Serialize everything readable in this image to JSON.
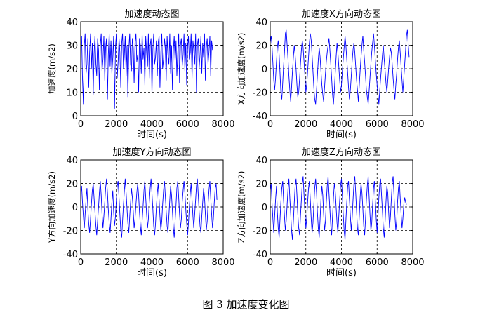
{
  "figure_caption": "图 3  加速度变化图",
  "chart_data": [
    {
      "type": "line",
      "title": "加速度动态图",
      "xlabel": "时间(s)",
      "ylabel": "加速度(m/s2)",
      "xlim": [
        0,
        8000
      ],
      "ylim": [
        0,
        40
      ],
      "xticks": [
        0,
        2000,
        4000,
        6000,
        8000
      ],
      "yticks": [
        0,
        10,
        20,
        30,
        40
      ],
      "grid": true,
      "series": [
        {
          "name": "加速度",
          "color": "#0000ff",
          "x_start": 0,
          "x_step": 50,
          "y": [
            28,
            34,
            16,
            5,
            30,
            35,
            18,
            22,
            33,
            12,
            27,
            35,
            20,
            31,
            9,
            26,
            34,
            22,
            17,
            33,
            28,
            11,
            30,
            35,
            19,
            24,
            34,
            15,
            29,
            33,
            7,
            26,
            35,
            21,
            32,
            18,
            25,
            34,
            3,
            29,
            35,
            16,
            23,
            33,
            27,
            12,
            31,
            35,
            20,
            26,
            34,
            17,
            30,
            8,
            28,
            35,
            22,
            19,
            33,
            29,
            14,
            31,
            35,
            23,
            26,
            10,
            33,
            30,
            18,
            35,
            24,
            29,
            13,
            34,
            27,
            21,
            35,
            16,
            30,
            33,
            9,
            28,
            35,
            22,
            25,
            32,
            17,
            31,
            34,
            12,
            27,
            35,
            20,
            24,
            33,
            29,
            15,
            34,
            26,
            22,
            35,
            18,
            30,
            11,
            28,
            34,
            23,
            32,
            17,
            27,
            35,
            14,
            30,
            33,
            21,
            26,
            35,
            19,
            31,
            13,
            29,
            34,
            24,
            27,
            35,
            16,
            32,
            28,
            22,
            35,
            10,
            30,
            33,
            20,
            26,
            34,
            18,
            31,
            25,
            35,
            15,
            29,
            33,
            22,
            27,
            34,
            17,
            32,
            28
          ]
        }
      ]
    },
    {
      "type": "line",
      "title": "加速度X方向动态图",
      "xlabel": "时间(s)",
      "ylabel": "X方向加速度(m/s2)",
      "xlim": [
        0,
        8000
      ],
      "ylim": [
        -40,
        40
      ],
      "xticks": [
        0,
        2000,
        4000,
        6000,
        8000
      ],
      "yticks": [
        -40,
        -20,
        0,
        20,
        40
      ],
      "grid": true,
      "series": [
        {
          "name": "X方向",
          "color": "#0000ff",
          "x_start": 0,
          "x_step": 50,
          "y": [
            22,
            28,
            20,
            5,
            -10,
            -18,
            -8,
            6,
            18,
            24,
            12,
            -4,
            -20,
            -26,
            -12,
            2,
            14,
            30,
            33,
            20,
            8,
            -6,
            -18,
            -28,
            -16,
            -2,
            10,
            20,
            12,
            0,
            -14,
            -24,
            -20,
            -8,
            4,
            16,
            24,
            18,
            6,
            -6,
            -20,
            -14,
            -2,
            10,
            22,
            30,
            24,
            12,
            -2,
            -16,
            -26,
            -30,
            -18,
            -6,
            8,
            18,
            10,
            -2,
            -14,
            -22,
            -28,
            -16,
            -4,
            6,
            14,
            20,
            26,
            16,
            4,
            -8,
            -22,
            -30,
            -18,
            -4,
            10,
            22,
            14,
            2,
            -10,
            -20,
            -14,
            -2,
            8,
            18,
            28,
            20,
            8,
            -4,
            -16,
            -26,
            -18,
            -6,
            6,
            16,
            22,
            14,
            2,
            -10,
            -18,
            -28,
            -14,
            -2,
            10,
            20,
            28,
            16,
            6,
            -6,
            -18,
            -24,
            -30,
            -20,
            -8,
            4,
            14,
            22,
            30,
            20,
            8,
            -4,
            -14,
            -22,
            -30,
            -18,
            -8,
            2,
            12,
            20,
            8,
            -2,
            -12,
            -20,
            -10,
            0,
            10,
            18,
            14,
            4,
            -8,
            -18,
            -26,
            -14,
            -4,
            8,
            18,
            24,
            14,
            2,
            -10,
            -20,
            -8,
            4,
            16,
            28,
            33,
            20,
            10
          ]
        }
      ]
    },
    {
      "type": "line",
      "title": "加速度Y方向动态图",
      "xlabel": "时间(s)",
      "ylabel": "Y方向加速度(m/s2)",
      "xlim": [
        0,
        8000
      ],
      "ylim": [
        -40,
        40
      ],
      "xticks": [
        0,
        2000,
        4000,
        6000,
        8000
      ],
      "yticks": [
        -40,
        -20,
        0,
        20,
        40
      ],
      "grid": true,
      "series": [
        {
          "name": "Y方向",
          "color": "#0000ff",
          "x_start": 0,
          "x_step": 50,
          "y": [
            10,
            18,
            4,
            -8,
            -18,
            -6,
            6,
            16,
            -2,
            -14,
            -22,
            -10,
            2,
            14,
            20,
            8,
            -4,
            -16,
            -24,
            -12,
            0,
            12,
            22,
            10,
            -6,
            -18,
            -8,
            4,
            16,
            24,
            12,
            -2,
            -14,
            -22,
            -10,
            4,
            14,
            -4,
            -16,
            -8,
            6,
            18,
            22,
            8,
            -6,
            -20,
            -26,
            -12,
            2,
            14,
            24,
            12,
            -2,
            -14,
            -22,
            -8,
            4,
            16,
            8,
            -4,
            -18,
            -10,
            2,
            12,
            20,
            10,
            -4,
            -16,
            -24,
            -12,
            0,
            14,
            22,
            8,
            -6,
            -18,
            -10,
            4,
            16,
            24,
            12,
            -2,
            -16,
            -24,
            -14,
            0,
            12,
            20,
            6,
            -8,
            -20,
            -12,
            2,
            14,
            22,
            10,
            -4,
            -16,
            -22,
            -8,
            6,
            18,
            10,
            -4,
            -18,
            -26,
            -12,
            2,
            16,
            22,
            8,
            -6,
            -18,
            -10,
            4,
            14,
            22,
            12,
            -2,
            -14,
            -24,
            -14,
            0,
            12,
            20,
            6,
            -8,
            -18,
            -6,
            6,
            18,
            24,
            10,
            -4,
            -16,
            -22,
            -8,
            4,
            16,
            8,
            -6,
            -20,
            -12,
            2,
            14,
            22,
            8,
            -6,
            -18,
            -10,
            4,
            16,
            20,
            6
          ]
        }
      ]
    },
    {
      "type": "line",
      "title": "加速度Z方向动态图",
      "xlabel": "时间(s)",
      "ylabel": "Z方向加速度(m/s2)",
      "xlim": [
        0,
        8000
      ],
      "ylim": [
        -40,
        40
      ],
      "xticks": [
        0,
        2000,
        4000,
        6000,
        8000
      ],
      "yticks": [
        -40,
        -20,
        0,
        20,
        40
      ],
      "grid": true,
      "series": [
        {
          "name": "Z方向",
          "color": "#0000ff",
          "x_start": 0,
          "x_step": 50,
          "y": [
            14,
            20,
            4,
            -10,
            -22,
            -8,
            6,
            18,
            -4,
            -18,
            -26,
            -10,
            4,
            16,
            22,
            6,
            -8,
            -20,
            -12,
            2,
            16,
            24,
            8,
            -6,
            -20,
            -28,
            -12,
            4,
            18,
            24,
            10,
            -6,
            -18,
            -24,
            -8,
            6,
            20,
            26,
            10,
            -4,
            -18,
            -10,
            4,
            16,
            22,
            6,
            -10,
            -22,
            -14,
            2,
            16,
            24,
            12,
            -4,
            -18,
            -26,
            -10,
            6,
            18,
            10,
            -6,
            -20,
            -12,
            4,
            18,
            26,
            12,
            -2,
            -16,
            -24,
            -8,
            8,
            20,
            14,
            0,
            -14,
            -22,
            -8,
            6,
            18,
            24,
            10,
            -6,
            -20,
            -28,
            -12,
            4,
            18,
            22,
            6,
            -8,
            -20,
            -10,
            6,
            20,
            26,
            12,
            -4,
            -18,
            -24,
            -8,
            8,
            20,
            12,
            -2,
            -16,
            -24,
            -10,
            6,
            18,
            26,
            10,
            -6,
            -20,
            -14,
            2,
            16,
            22,
            6,
            -10,
            -22,
            -8,
            8,
            20,
            24,
            10,
            -4,
            -18,
            -26,
            -12,
            4,
            18,
            12,
            -4,
            -18,
            -8,
            6,
            20,
            26,
            10,
            -6,
            -20,
            -12,
            4,
            16,
            22,
            8,
            -6,
            -18,
            -10,
            2,
            8,
            4,
            2
          ]
        }
      ]
    }
  ]
}
